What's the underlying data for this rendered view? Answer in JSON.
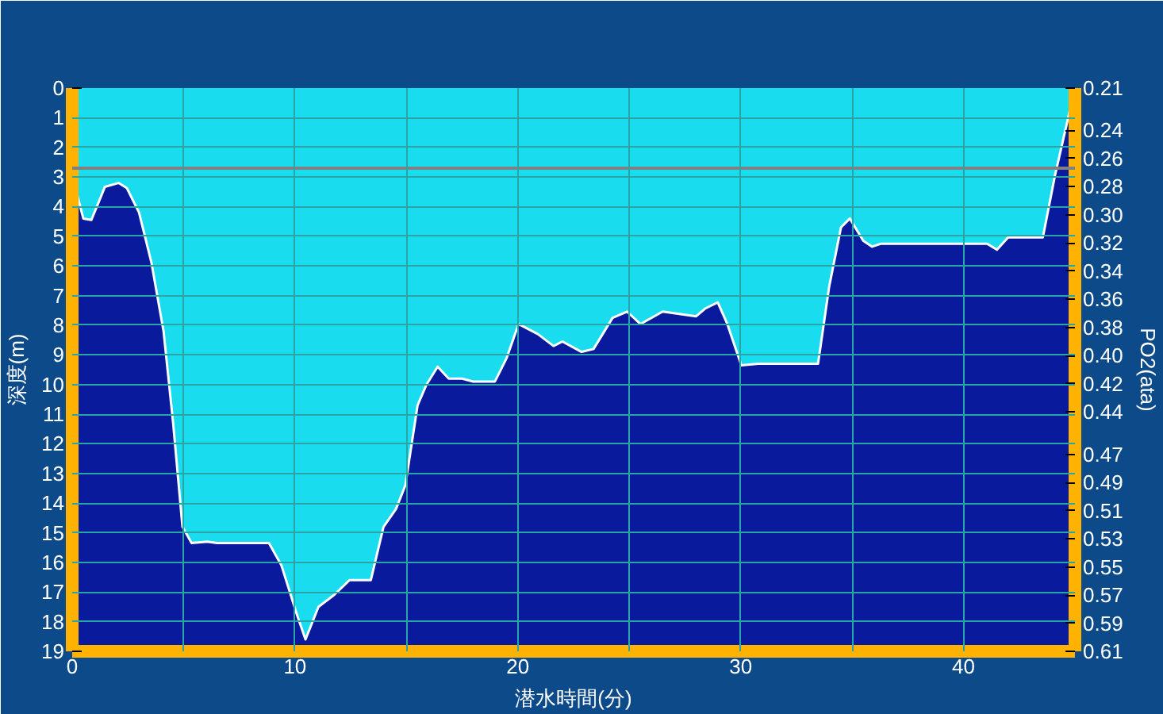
{
  "chart_data": {
    "type": "area",
    "xlabel": "潜水時間(分)",
    "ylabel": "深度(m)",
    "y2label": "PO2(ata)",
    "x": [
      0.0,
      0.5,
      0.86,
      1.47,
      2.08,
      2.45,
      3.0,
      3.56,
      4.1,
      4.53,
      4.95,
      5.36,
      6.05,
      6.5,
      8.83,
      9.39,
      10.08,
      10.47,
      11.05,
      11.75,
      12.44,
      13.4,
      13.97,
      14.53,
      14.95,
      15.5,
      15.9,
      16.4,
      16.9,
      17.5,
      18.0,
      18.97,
      19.5,
      20.03,
      20.9,
      21.6,
      22.0,
      22.86,
      23.4,
      24.25,
      24.9,
      25.5,
      26.5,
      28.0,
      28.4,
      28.97,
      29.4,
      30.03,
      30.78,
      33.47,
      33.97,
      34.5,
      34.9,
      35.5,
      35.9,
      36.3,
      41.06,
      41.5,
      42.0,
      43.56,
      44.1,
      45.0
    ],
    "series": [
      {
        "color": "#19dcef",
        "values": [
          2.96,
          4.4,
          4.45,
          3.33,
          3.2,
          3.37,
          4.2,
          5.9,
          8.2,
          11.3,
          14.8,
          15.35,
          15.3,
          15.35,
          15.35,
          16.1,
          17.75,
          18.6,
          17.5,
          17.1,
          16.6,
          16.6,
          14.8,
          14.2,
          13.4,
          10.7,
          10.0,
          9.4,
          9.8,
          9.8,
          9.9,
          9.9,
          9.1,
          7.96,
          8.3,
          8.7,
          8.55,
          8.9,
          8.8,
          7.75,
          7.54,
          7.96,
          7.54,
          7.7,
          7.44,
          7.23,
          7.96,
          9.35,
          9.3,
          9.3,
          6.7,
          4.7,
          4.4,
          5.15,
          5.35,
          5.25,
          5.25,
          5.45,
          5.04,
          5.04,
          2.96,
          0.0
        ]
      }
    ],
    "xlim": [
      0,
      45
    ],
    "ylim": [
      19,
      0
    ],
    "xticks": [
      0,
      {
        "value": 5,
        "label": null
      },
      10,
      {
        "value": 15,
        "label": null
      },
      20,
      {
        "value": 25,
        "label": null
      },
      30,
      {
        "value": 35,
        "label": null
      },
      40
    ],
    "yticks": [
      0,
      1,
      2,
      3,
      4,
      5,
      6,
      7,
      8,
      9,
      10,
      11,
      12,
      13,
      14,
      15,
      16,
      17,
      18,
      19
    ],
    "y2lim": [
      0.61,
      0.21
    ],
    "y2ticks": [
      {
        "value": 0.21,
        "label": "0.21"
      },
      {
        "value": 0.24,
        "label": "0.24"
      },
      {
        "value": 0.26,
        "label": "0.26"
      },
      {
        "value": 0.28,
        "label": "0.28"
      },
      {
        "value": 0.3,
        "label": "0.30"
      },
      {
        "value": 0.32,
        "label": "0.32"
      },
      {
        "value": 0.34,
        "label": "0.34"
      },
      {
        "value": 0.36,
        "label": "0.36"
      },
      {
        "value": 0.38,
        "label": "0.38"
      },
      {
        "value": 0.4,
        "label": "0.40"
      },
      {
        "value": 0.42,
        "label": "0.42"
      },
      {
        "value": 0.44,
        "label": "0.44"
      },
      {
        "value": 0.47,
        "label": "0.47"
      },
      {
        "value": 0.49,
        "label": "0.49"
      },
      {
        "value": 0.51,
        "label": "0.51"
      },
      {
        "value": 0.53,
        "label": "0.53"
      },
      {
        "value": 0.55,
        "label": "0.55"
      },
      {
        "value": 0.57,
        "label": "0.57"
      },
      {
        "value": 0.59,
        "label": "0.59"
      },
      {
        "value": 0.61,
        "label": "0.61"
      }
    ],
    "ref_lines": [
      {
        "axis": "y",
        "value": 2.7,
        "color": "#808080"
      }
    ],
    "grid": true
  }
}
